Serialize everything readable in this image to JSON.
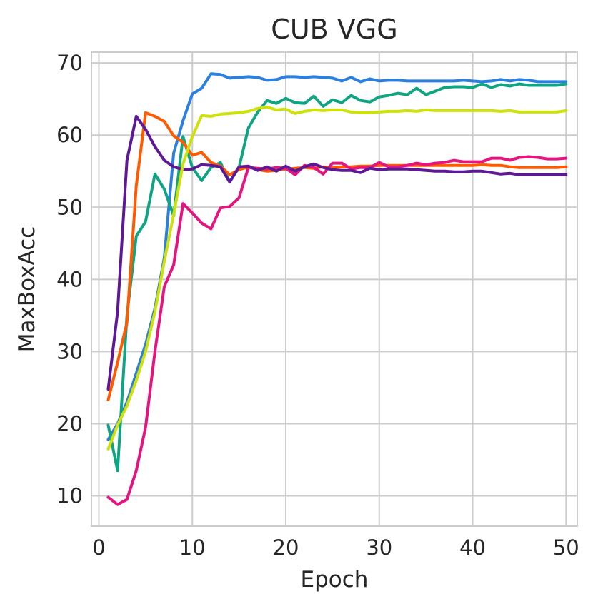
{
  "chart_data": {
    "type": "line",
    "title": "CUB VGG",
    "xlabel": "Epoch",
    "ylabel": "MaxBoxAcc",
    "xlim": [
      -0.8,
      51.2
    ],
    "ylim": [
      5.8,
      71.5
    ],
    "xticks": [
      0,
      10,
      20,
      30,
      40,
      50
    ],
    "yticks": [
      10,
      20,
      30,
      40,
      50,
      60,
      70
    ],
    "grid": true,
    "x": [
      1,
      2,
      3,
      4,
      5,
      6,
      7,
      8,
      9,
      10,
      11,
      12,
      13,
      14,
      15,
      16,
      17,
      18,
      19,
      20,
      21,
      22,
      23,
      24,
      25,
      26,
      27,
      28,
      29,
      30,
      31,
      32,
      33,
      34,
      35,
      36,
      37,
      38,
      39,
      40,
      41,
      42,
      43,
      44,
      45,
      46,
      47,
      48,
      49,
      50
    ],
    "series": [
      {
        "color": "#2a7fdf",
        "values": [
          17.8,
          20.0,
          23.0,
          27.0,
          31.0,
          36.0,
          43.0,
          57.5,
          62.0,
          65.7,
          66.5,
          68.5,
          68.4,
          67.9,
          68.0,
          68.1,
          68.0,
          67.6,
          67.7,
          68.1,
          68.1,
          68.0,
          68.1,
          68.0,
          67.9,
          67.5,
          68.0,
          67.4,
          67.8,
          67.5,
          67.6,
          67.6,
          67.5,
          67.5,
          67.5,
          67.5,
          67.5,
          67.5,
          67.6,
          67.5,
          67.4,
          67.5,
          67.7,
          67.5,
          67.7,
          67.6,
          67.4,
          67.4,
          67.4,
          67.4
        ]
      },
      {
        "color": "#0fa582",
        "values": [
          19.8,
          13.5,
          35.0,
          46.0,
          48.0,
          54.6,
          52.5,
          48.8,
          59.8,
          55.5,
          53.7,
          55.5,
          56.2,
          53.5,
          55.5,
          61.0,
          63.2,
          64.8,
          64.4,
          65.1,
          64.5,
          64.4,
          65.4,
          64.0,
          64.9,
          64.5,
          65.5,
          64.8,
          64.6,
          65.3,
          65.5,
          65.8,
          65.6,
          66.5,
          65.6,
          66.1,
          66.6,
          66.7,
          66.7,
          66.6,
          67.1,
          66.6,
          67.0,
          66.8,
          67.1,
          66.9,
          66.9,
          66.9,
          66.9,
          67.1
        ]
      },
      {
        "color": "#ff5a00",
        "values": [
          23.3,
          28.5,
          34.0,
          53.0,
          63.1,
          62.6,
          61.9,
          59.9,
          59.0,
          57.2,
          57.6,
          56.2,
          55.7,
          54.5,
          55.2,
          55.6,
          55.2,
          55.0,
          55.1,
          55.3,
          55.4,
          55.5,
          55.4,
          55.6,
          55.5,
          55.6,
          55.6,
          55.7,
          55.7,
          55.8,
          55.8,
          55.8,
          55.8,
          55.8,
          55.8,
          55.8,
          55.8,
          55.8,
          55.8,
          55.8,
          55.9,
          55.8,
          55.8,
          55.6,
          55.5,
          55.5,
          55.5,
          55.5,
          55.5,
          55.6
        ]
      },
      {
        "color": "#e4157f",
        "values": [
          9.8,
          8.8,
          9.5,
          13.5,
          19.5,
          30.0,
          39.0,
          42.0,
          50.5,
          49.2,
          47.8,
          47.0,
          49.9,
          50.1,
          51.3,
          55.5,
          55.4,
          55.3,
          55.5,
          55.4,
          54.5,
          55.8,
          55.5,
          54.6,
          56.1,
          56.1,
          55.3,
          55.5,
          55.5,
          56.2,
          55.6,
          55.6,
          55.8,
          56.1,
          55.9,
          56.1,
          56.2,
          56.5,
          56.3,
          56.3,
          56.3,
          56.8,
          56.8,
          56.5,
          56.9,
          57.0,
          56.9,
          56.7,
          56.7,
          56.8
        ]
      },
      {
        "color": "#5e1896",
        "values": [
          24.8,
          35.5,
          56.5,
          62.6,
          60.8,
          58.4,
          56.5,
          55.6,
          55.2,
          55.3,
          55.9,
          55.8,
          55.6,
          53.5,
          55.6,
          55.7,
          55.1,
          55.6,
          55.0,
          55.7,
          55.0,
          55.6,
          56.0,
          55.5,
          55.2,
          55.1,
          55.1,
          54.8,
          55.4,
          55.2,
          55.3,
          55.3,
          55.3,
          55.2,
          55.1,
          55.0,
          55.0,
          54.9,
          54.9,
          55.0,
          55.0,
          54.8,
          54.6,
          54.7,
          54.5,
          54.5,
          54.5,
          54.5,
          54.5,
          54.5
        ]
      },
      {
        "color": "#cfe10a",
        "values": [
          16.5,
          19.8,
          22.5,
          26.0,
          30.0,
          35.5,
          42.5,
          49.0,
          56.0,
          59.8,
          62.7,
          62.6,
          62.9,
          63.0,
          63.1,
          63.3,
          63.7,
          63.9,
          63.5,
          63.6,
          63.0,
          63.3,
          63.5,
          63.4,
          63.5,
          63.5,
          63.2,
          63.1,
          63.1,
          63.2,
          63.3,
          63.3,
          63.4,
          63.3,
          63.5,
          63.4,
          63.4,
          63.4,
          63.4,
          63.4,
          63.4,
          63.4,
          63.3,
          63.4,
          63.2,
          63.2,
          63.2,
          63.2,
          63.2,
          63.4
        ]
      }
    ]
  }
}
